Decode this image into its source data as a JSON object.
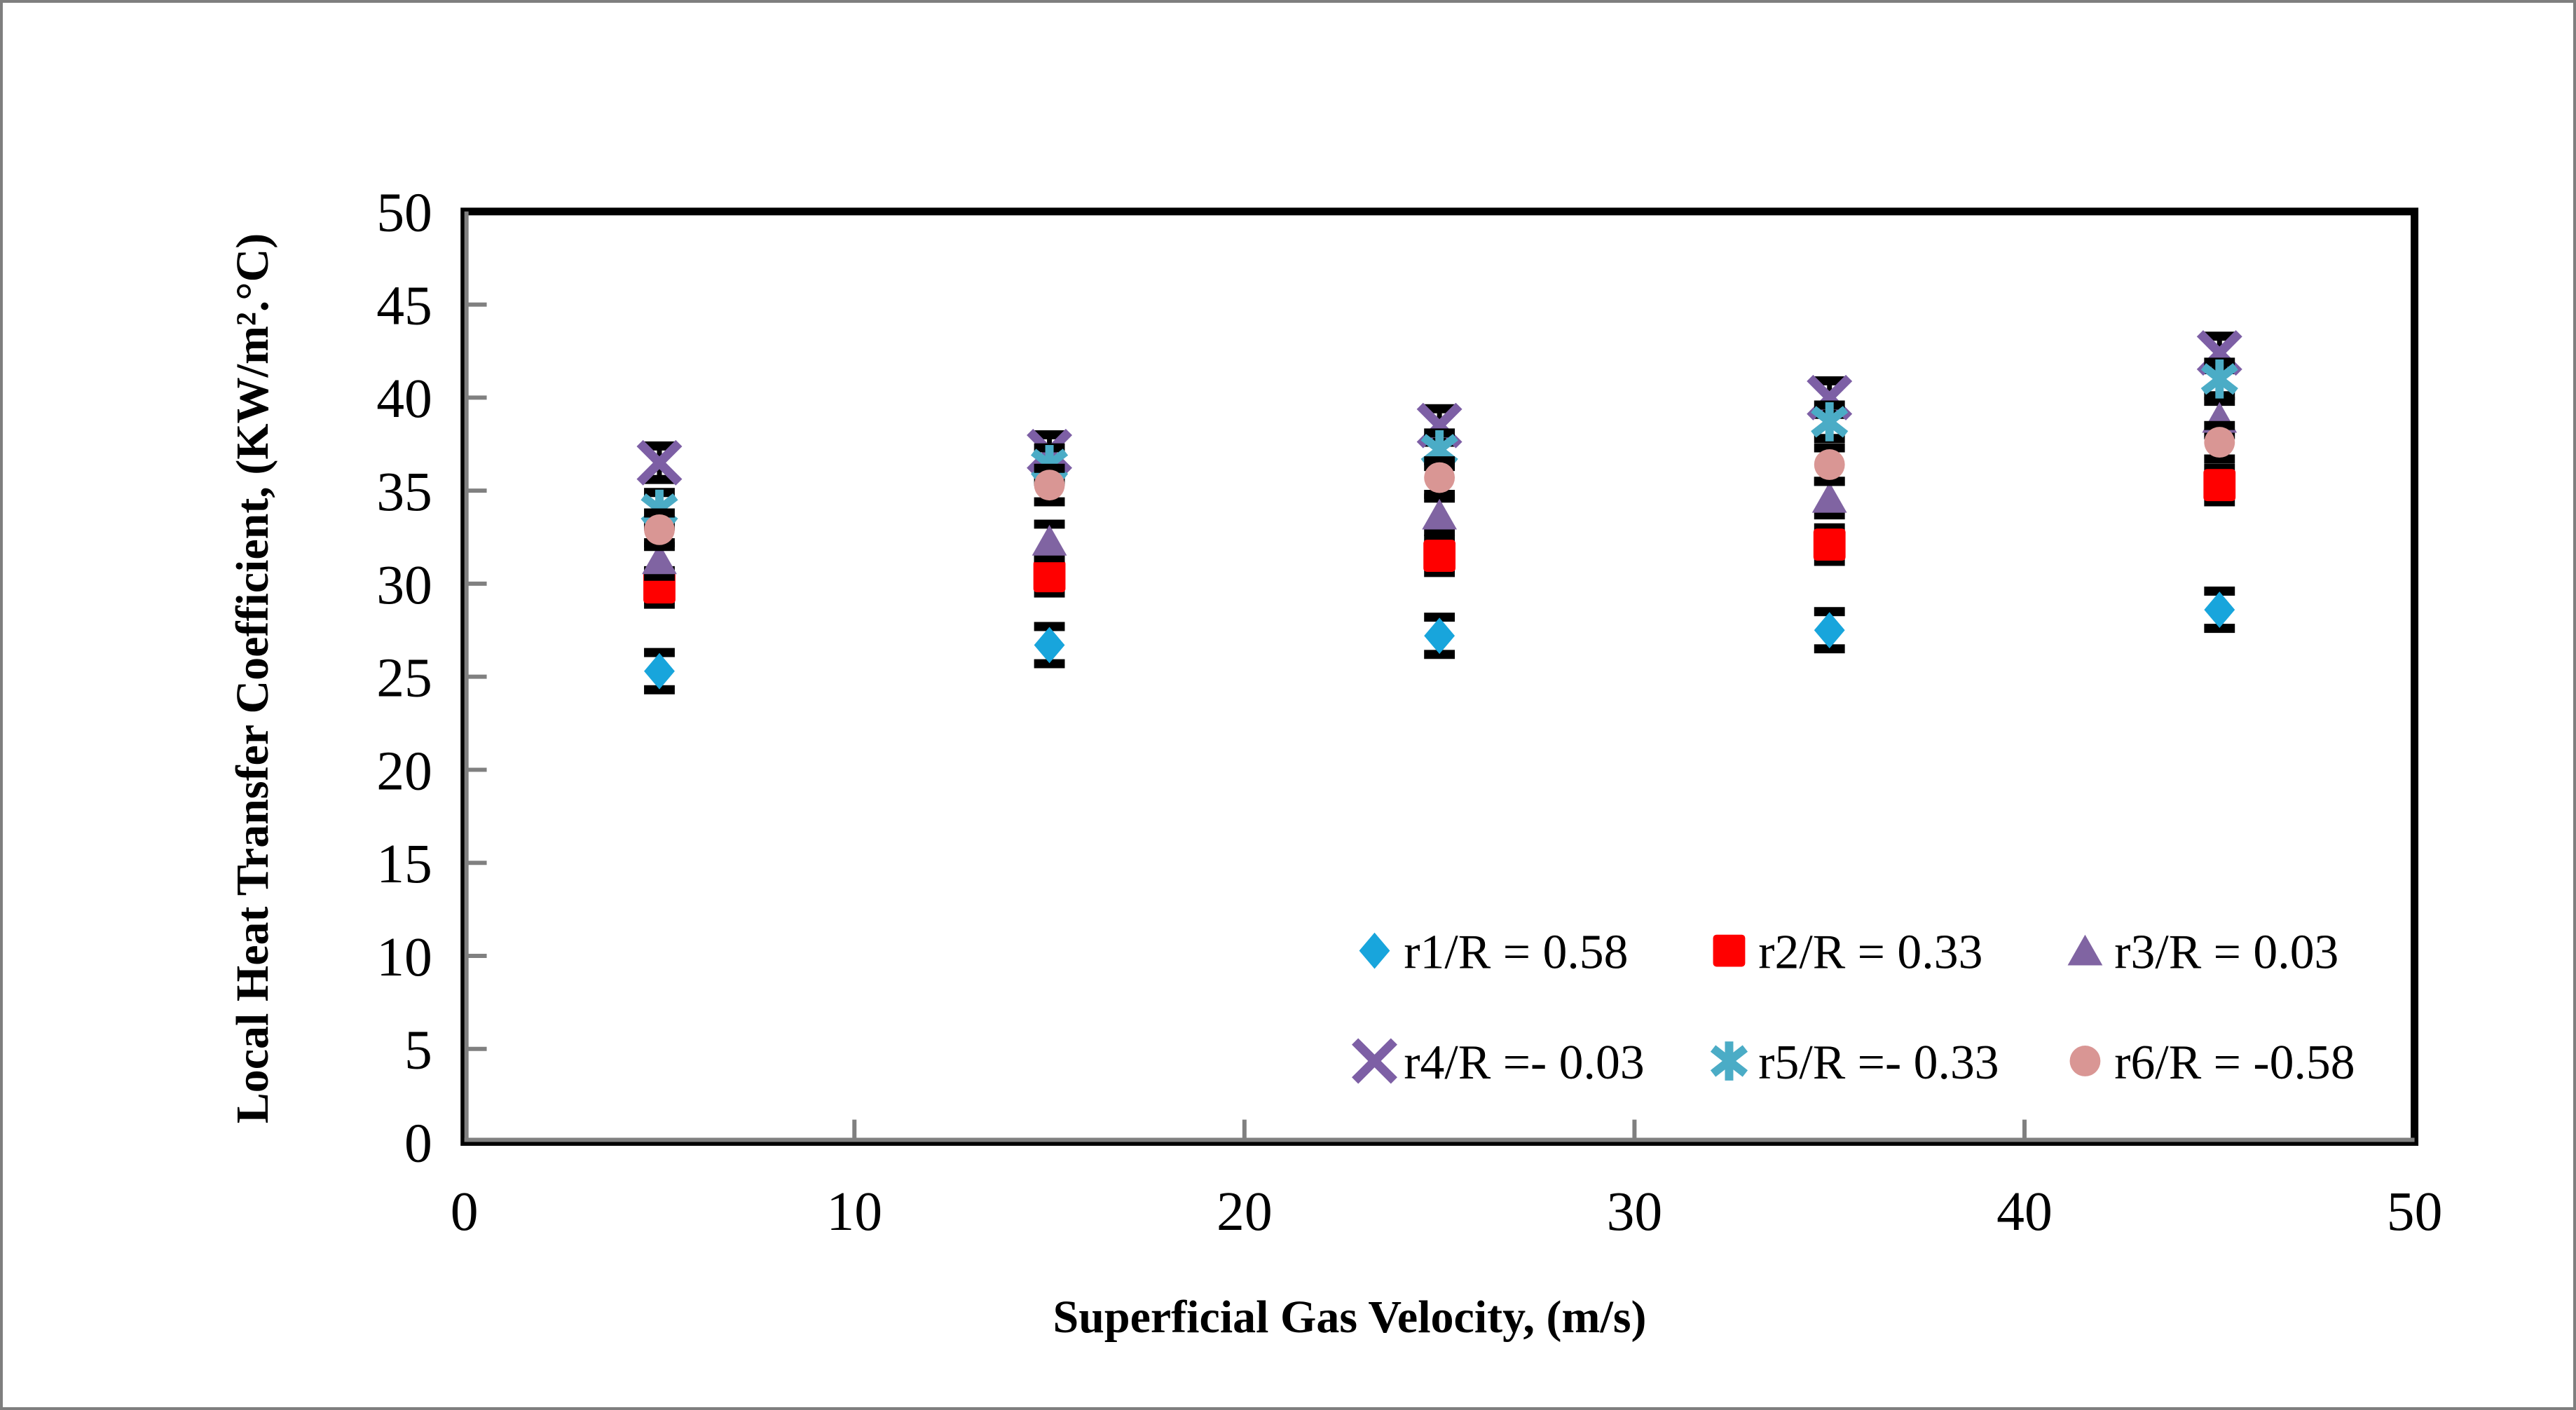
{
  "figure": {
    "background_color": "#FFFFFF",
    "outer_border_color": "#7F7F7F",
    "plot_frame_color": "#000000",
    "axis_line_color": "#808080",
    "error_bar_color": "#000000"
  },
  "x_axis_title": "Superficial Gas Velocity, (m/s)",
  "y_axis_title": "Local Heat Transfer Coefficient, (KW/m².°C)",
  "chart_data": {
    "type": "scatter",
    "title": "",
    "xlabel": "Superficial Gas Velocity, (m/s)",
    "ylabel": "Local Heat Transfer Coefficient, (KW/m².°C)",
    "xlim": [
      0,
      50
    ],
    "ylim": [
      0,
      50
    ],
    "x_ticks": [
      0,
      10,
      20,
      30,
      40,
      50
    ],
    "y_ticks": [
      0,
      5,
      10,
      15,
      20,
      25,
      30,
      35,
      40,
      45,
      50
    ],
    "grid": false,
    "legend_position": "inside-bottom-right-two-rows",
    "x": [
      5,
      15,
      25,
      35,
      45
    ],
    "series": [
      {
        "name": "r1/R = 0.58",
        "marker": "diamond",
        "color": "#18A5DC",
        "error": 1.0,
        "values": [
          25.3,
          26.7,
          27.2,
          27.5,
          28.6
        ]
      },
      {
        "name": "r2/R = 0.33",
        "marker": "square",
        "color": "#FF0000",
        "error": 0.9,
        "values": [
          29.8,
          30.4,
          31.5,
          32.1,
          35.3
        ]
      },
      {
        "name": "r3/R = 0.03",
        "marker": "triangle",
        "color": "#8064A2",
        "error": 0.9,
        "values": [
          31.3,
          32.3,
          33.7,
          34.6,
          38.9
        ]
      },
      {
        "name": "r4/R =- 0.03",
        "marker": "x",
        "color": "#7D5FA5",
        "error": 0.9,
        "values": [
          36.5,
          37.1,
          38.5,
          40.0,
          42.4
        ]
      },
      {
        "name": "r5/R =- 0.33",
        "marker": "asterisk",
        "color": "#4BACC6",
        "error": 0.9,
        "values": [
          34.0,
          36.4,
          37.2,
          38.7,
          41.0
        ]
      },
      {
        "name": "r6/R = -0.58",
        "marker": "circle",
        "color": "#D99694",
        "error": 0.9,
        "values": [
          32.9,
          35.3,
          35.7,
          36.4,
          37.6
        ]
      }
    ]
  }
}
